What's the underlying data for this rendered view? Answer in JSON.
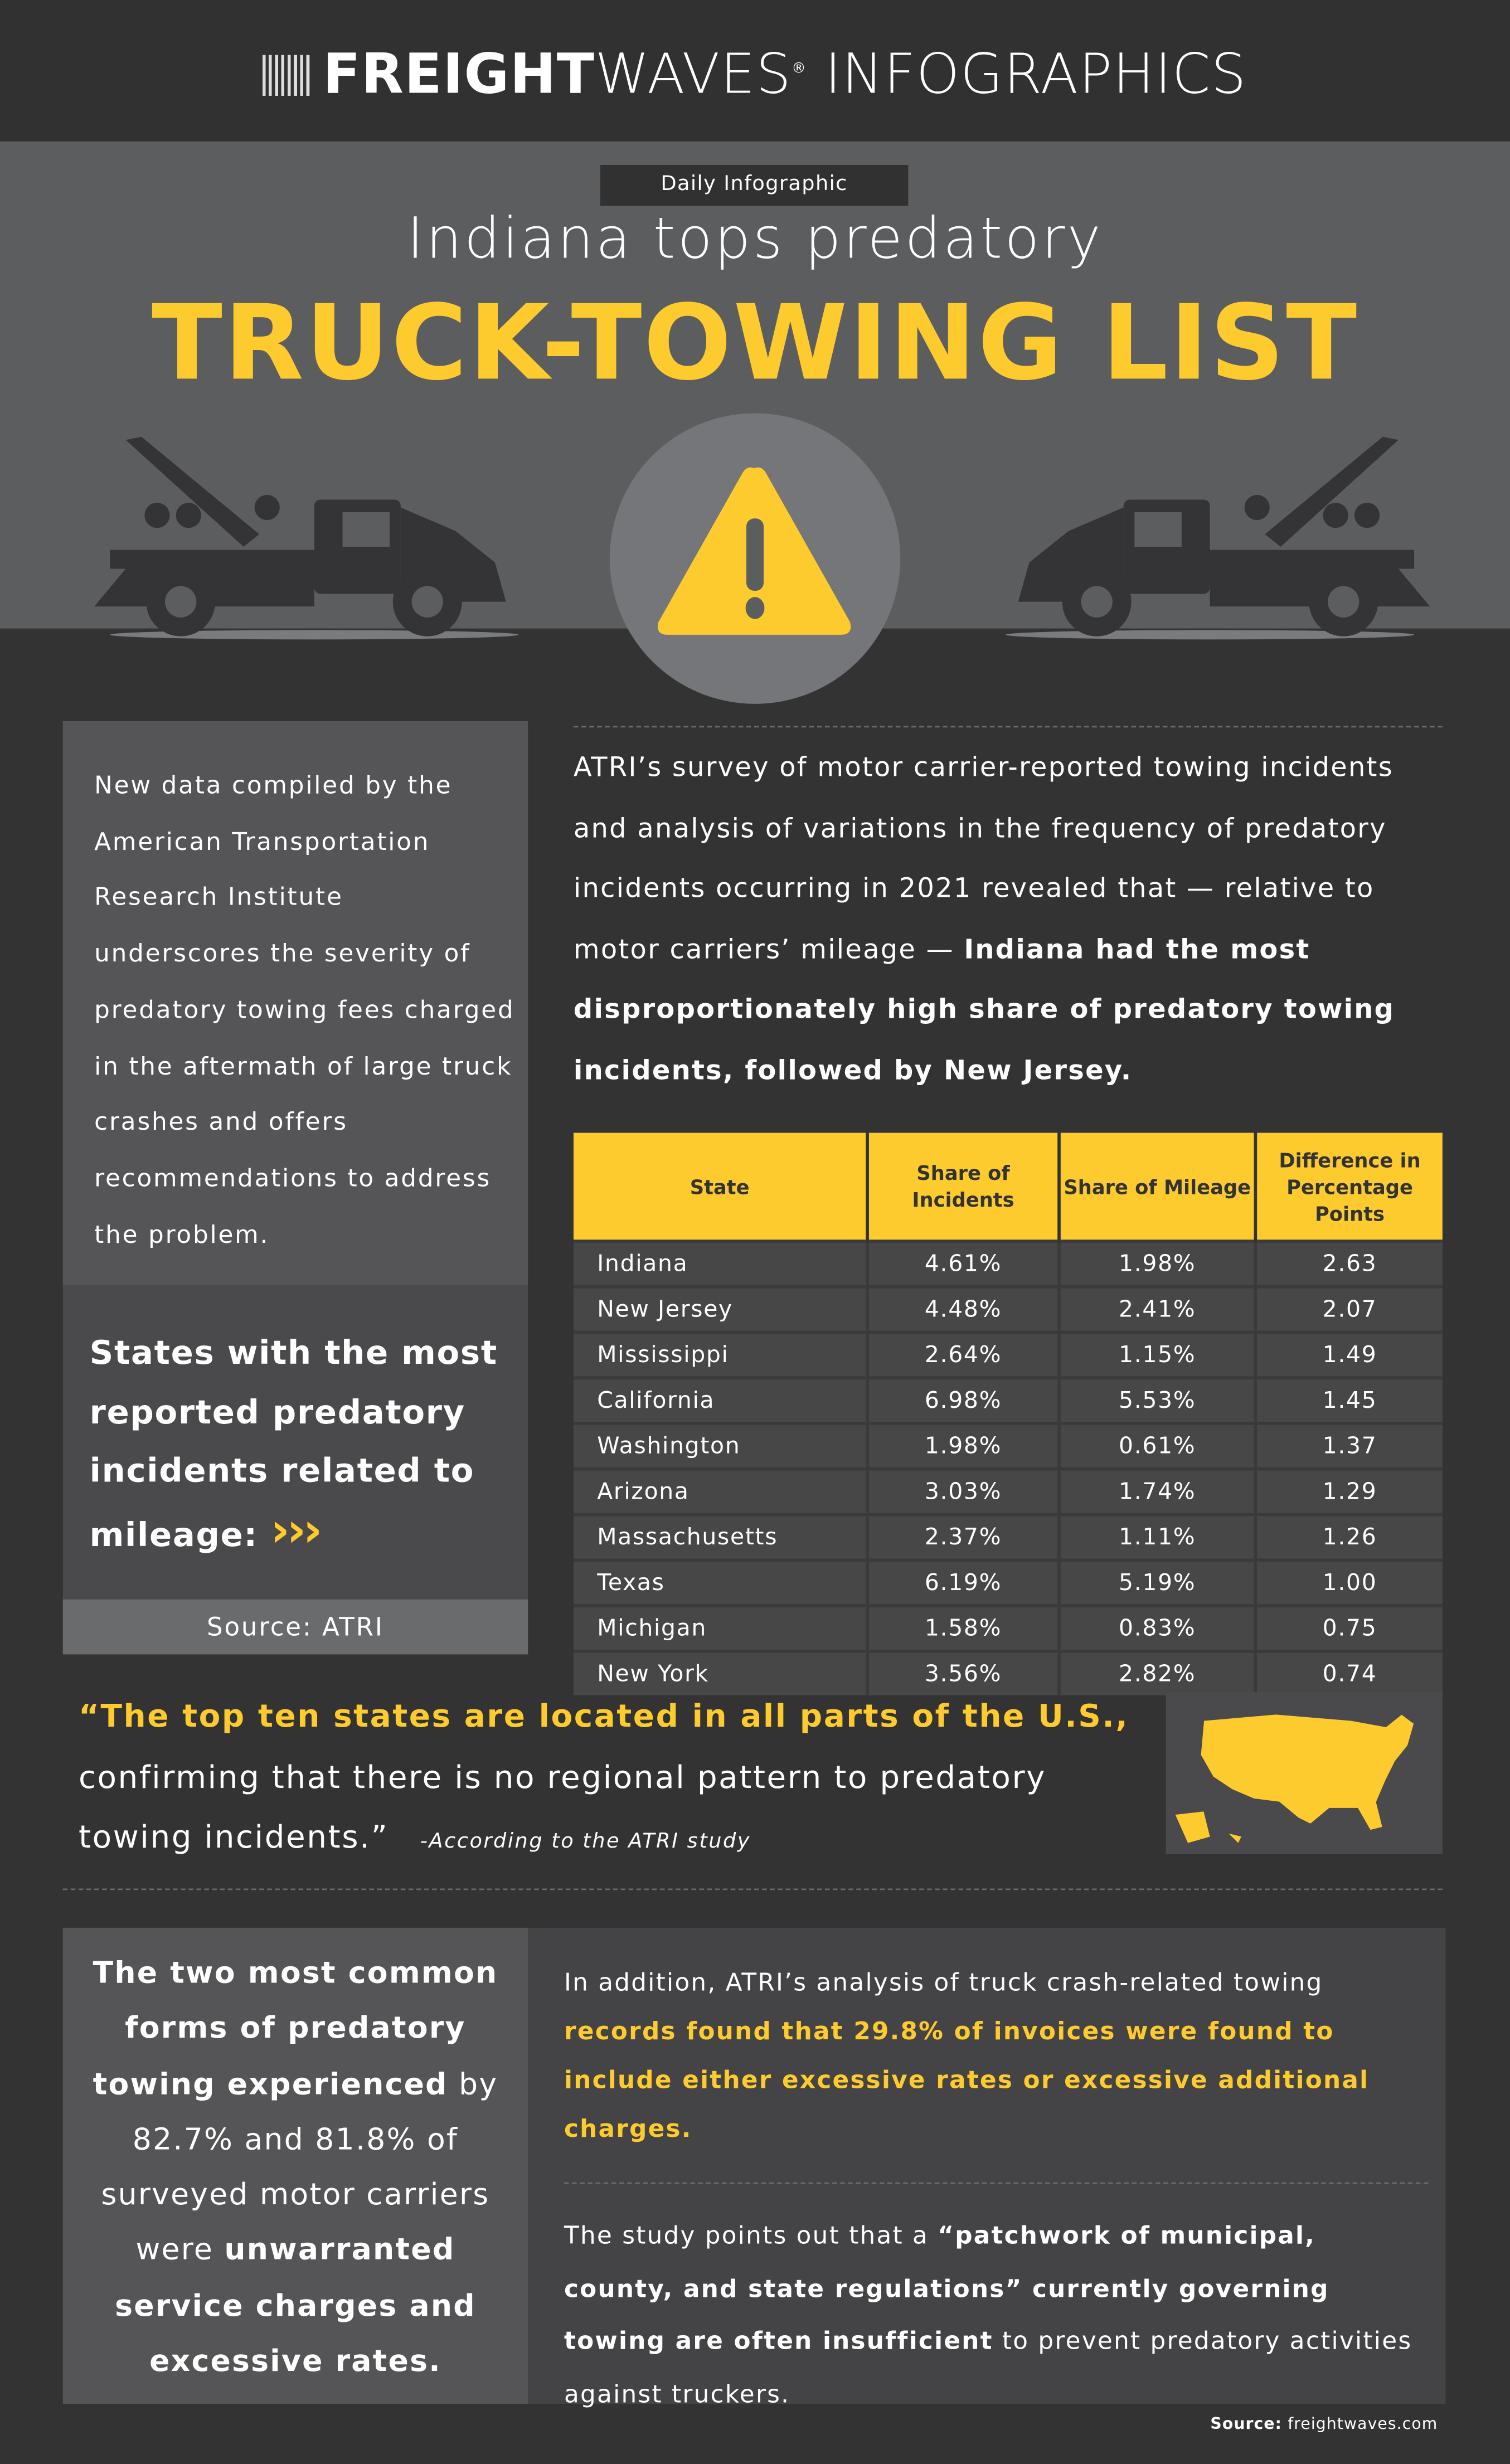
{
  "header": {
    "logo_bold": "FREIGHT",
    "logo_light": "WAVES",
    "logo_mark": "®",
    "logo_suffix": "INFOGRAPHICS"
  },
  "hero": {
    "badge": "Daily Infographic",
    "subtitle": "Indiana tops predatory",
    "title": "TRUCK-TOWING LIST",
    "icons": [
      "tow-truck-icon",
      "warning-icon",
      "tow-truck-icon"
    ]
  },
  "colors": {
    "accent": "#fecb2f",
    "background": "#333334",
    "band": "#5c5d5f"
  },
  "left_panel": {
    "text": "New data compiled by the American Transportation Research Institute underscores the severity of predatory towing fees charged in the aftermath of large truck crashes and offers recommendations to address the problem.",
    "states_heading": "States with the most reported predatory incidents related to mileage:",
    "arrows": "›››",
    "source": "Source: ATRI"
  },
  "intro": {
    "text": "ATRI’s survey of motor carrier-reported towing incidents and analysis of variations in the frequency of predatory incidents occurring in 2021 revealed that — relative to motor carriers’ mileage — ",
    "bold": "Indiana had the most disproportionately high share of predatory towing incidents, followed by New Jersey."
  },
  "table": {
    "headers": [
      "State",
      "Share of Incidents",
      "Share of Mileage",
      "Difference in Percentage Points"
    ],
    "rows": [
      [
        "Indiana",
        "4.61%",
        "1.98%",
        "2.63"
      ],
      [
        "New Jersey",
        "4.48%",
        "2.41%",
        "2.07"
      ],
      [
        "Mississippi",
        "2.64%",
        "1.15%",
        "1.49"
      ],
      [
        "California",
        "6.98%",
        "5.53%",
        "1.45"
      ],
      [
        "Washington",
        "1.98%",
        "0.61%",
        "1.37"
      ],
      [
        "Arizona",
        "3.03%",
        "1.74%",
        "1.29"
      ],
      [
        "Massachusetts",
        "2.37%",
        "1.11%",
        "1.26"
      ],
      [
        "Texas",
        "6.19%",
        "5.19%",
        "1.00"
      ],
      [
        "Michigan",
        "1.58%",
        "0.83%",
        "0.75"
      ],
      [
        "New York",
        "3.56%",
        "2.82%",
        "0.74"
      ]
    ]
  },
  "quote": {
    "highlight": "“The top ten states are located in all parts of the U.S.,",
    "rest": "confirming that there is no regional pattern to predatory towing incidents.”",
    "attribution": "-According to the ATRI study"
  },
  "bottom_left": {
    "bold1": "The two most common forms of predatory towing experienced",
    "plain1": "by 82.7% and 81.8% of surveyed motor carriers were",
    "bold2": "unwarranted service charges and excessive rates."
  },
  "bottom_right": {
    "p1_plain": "In addition, ATRI’s analysis of truck crash-related towing",
    "p1_bold": "records found that 29.8% of invoices were found to include either excessive rates or excessive additional charges.",
    "p2_plain1": "The study points out that a",
    "p2_bold": "“patchwork of municipal, county, and state regulations” currently governing towing are often insufficient",
    "p2_plain2": "to prevent predatory activities against truckers."
  },
  "footer": {
    "source_label": "Source:",
    "source_value": "freightwaves.com"
  }
}
